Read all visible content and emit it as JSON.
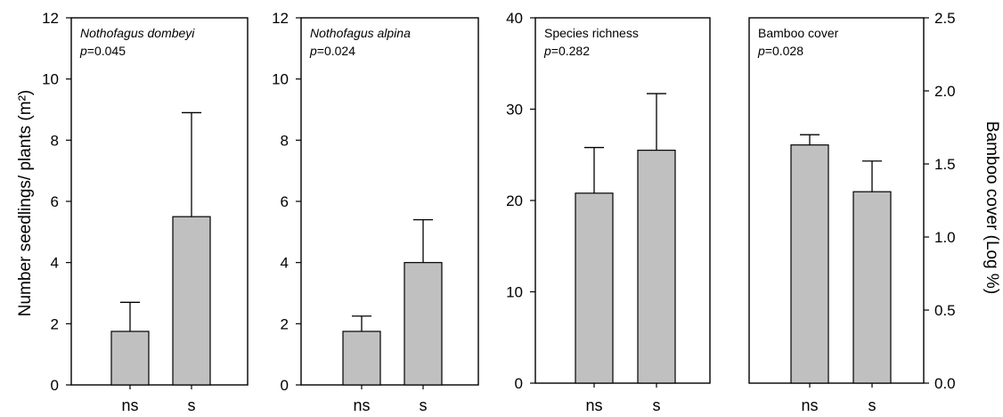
{
  "chart_data": [
    {
      "type": "bar",
      "title": "Nothofagus dombeyi",
      "title_italic": true,
      "p_label": "p",
      "p_value": "=0.045",
      "categories": [
        "ns",
        "s"
      ],
      "values": [
        1.75,
        5.5
      ],
      "errors": [
        0.95,
        3.4
      ],
      "ylim": [
        0,
        12
      ],
      "yticks": [
        "0",
        "2",
        "4",
        "6",
        "8",
        "10",
        "12"
      ],
      "ylabel": "Number seedlings/ plants (m²)",
      "grid": false
    },
    {
      "type": "bar",
      "title": "Nothofagus alpina",
      "title_italic": true,
      "p_label": "p",
      "p_value": "=0.024",
      "categories": [
        "ns",
        "s"
      ],
      "values": [
        1.75,
        4.0
      ],
      "errors": [
        0.5,
        1.4
      ],
      "ylim": [
        0,
        12
      ],
      "yticks": [
        "0",
        "2",
        "4",
        "6",
        "8",
        "10",
        "12"
      ],
      "grid": false
    },
    {
      "type": "bar",
      "title": "Species richness",
      "title_italic": false,
      "p_label": "p",
      "p_value": "=0.282",
      "categories": [
        "ns",
        "s"
      ],
      "values": [
        20.8,
        25.5
      ],
      "errors": [
        5.0,
        6.2
      ],
      "ylim": [
        0,
        40
      ],
      "yticks": [
        "0",
        "10",
        "20",
        "30",
        "40"
      ],
      "grid": false
    },
    {
      "type": "bar",
      "title": "Bamboo cover",
      "title_italic": false,
      "p_label": "p",
      "p_value": "=0.028",
      "categories": [
        "ns",
        "s"
      ],
      "values": [
        1.63,
        1.31
      ],
      "errors": [
        0.07,
        0.21
      ],
      "ylim": [
        0,
        2.5
      ],
      "yticks": [
        "0.0",
        "0.5",
        "1.0",
        "1.5",
        "2.0",
        "2.5"
      ],
      "ylabel": "Bamboo cover (Log %)",
      "grid": false
    }
  ]
}
